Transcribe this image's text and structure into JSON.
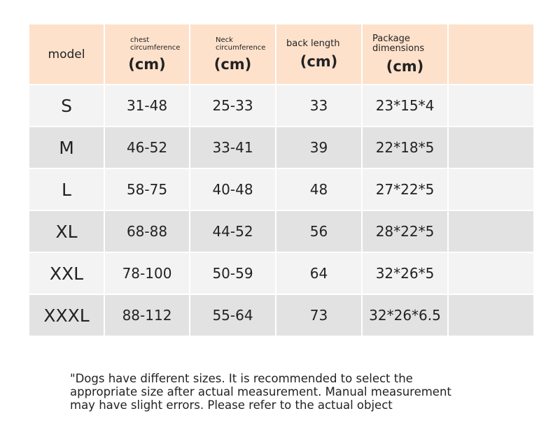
{
  "table": {
    "headers": [
      {
        "label": "model"
      },
      {
        "label": "chest circumference",
        "unit": "(cm)"
      },
      {
        "label": "Neck circumference",
        "unit": "(cm)"
      },
      {
        "label": "back length",
        "unit": "(cm)"
      },
      {
        "label": "Package dimensions",
        "unit": "(cm)"
      }
    ],
    "rows": [
      [
        "S",
        "31-48",
        "25-33",
        "33",
        "23*15*4"
      ],
      [
        "M",
        "46-52",
        "33-41",
        "39",
        "22*18*5"
      ],
      [
        "L",
        "58-75",
        "40-48",
        "48",
        "27*22*5"
      ],
      [
        "XL",
        "68-88",
        "44-52",
        "56",
        "28*22*5"
      ],
      [
        "XXL",
        "78-100",
        "50-59",
        "64",
        "32*26*5"
      ],
      [
        "XXXL",
        "88-112",
        "55-64",
        "73",
        "32*26*6.5"
      ]
    ]
  },
  "footnote": "\"Dogs have different sizes. It is recommended to select the appropriate size after actual measurement. Manual measurement may have slight errors. Please refer to the actual object"
}
